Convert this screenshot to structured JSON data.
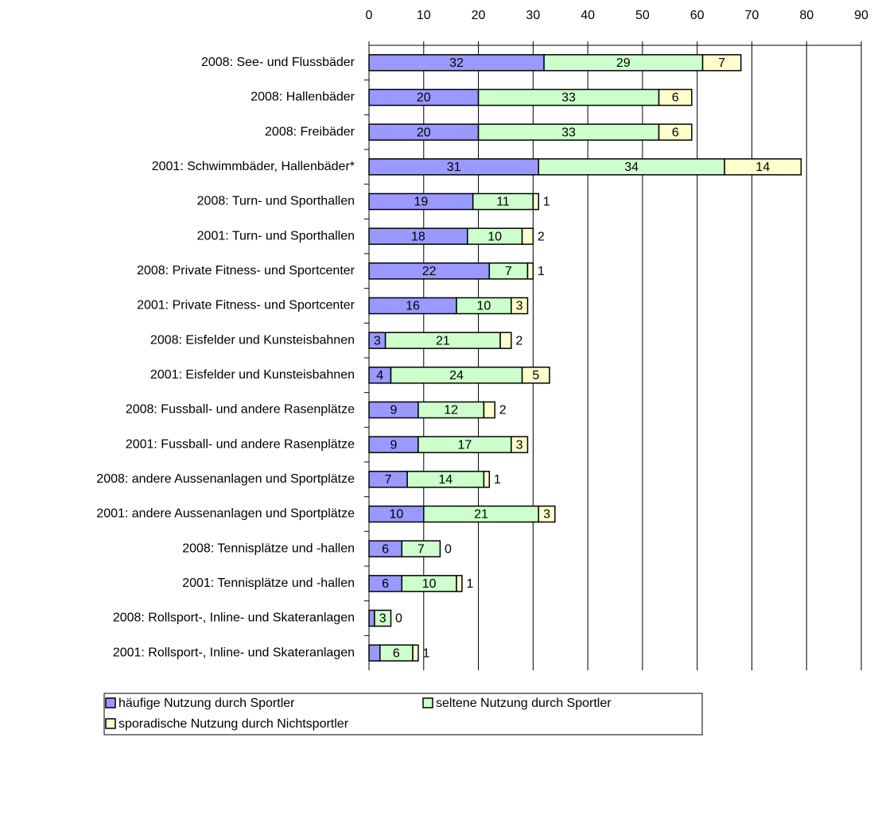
{
  "chart_data": {
    "type": "stacked-bar-horizontal",
    "categories": [
      "2008: See- und Flussbäder",
      "2008: Hallenbäder",
      "2008: Freibäder",
      "2001: Schwimmbäder, Hallenbäder*",
      "2008: Turn- und Sporthallen",
      "2001: Turn- und Sporthallen",
      "2008: Private Fitness- und Sportcenter",
      "2001: Private Fitness- und Sportcenter",
      "2008: Eisfelder und Kunsteisbahnen",
      "2001: Eisfelder und Kunsteisbahnen",
      "2008: Fussball- und andere Rasenplätze",
      "2001: Fussball- und andere Rasenplätze",
      "2008: andere Aussenanlagen und Sportplätze",
      "2001: andere Aussenanlagen und Sportplätze",
      "2008: Tennisplätze und -hallen",
      "2001: Tennisplätze und -hallen",
      "2008: Rollsport-, Inline- und Skateranlagen",
      "2001: Rollsport-, Inline- und Skateranlagen"
    ],
    "series": [
      {
        "name": "häufige Nutzung durch Sportler",
        "color": "#9999ff",
        "values": [
          32,
          20,
          20,
          31,
          19,
          18,
          22,
          16,
          3,
          4,
          9,
          9,
          7,
          10,
          6,
          6,
          1,
          2
        ]
      },
      {
        "name": "seltene Nutzung durch Sportler",
        "color": "#ccffcc",
        "values": [
          29,
          33,
          33,
          34,
          11,
          10,
          7,
          10,
          21,
          24,
          12,
          17,
          14,
          21,
          7,
          10,
          3,
          6
        ]
      },
      {
        "name": "sporadische Nutzung durch Nichtsportler",
        "color": "#ffffcc",
        "values": [
          7,
          6,
          6,
          14,
          1,
          2,
          1,
          3,
          2,
          5,
          2,
          3,
          1,
          3,
          0,
          1,
          0,
          1
        ]
      }
    ],
    "xlim": [
      0,
      90
    ],
    "xticks": [
      0,
      10,
      20,
      30,
      40,
      50,
      60,
      70,
      80,
      90
    ],
    "grid": true
  }
}
